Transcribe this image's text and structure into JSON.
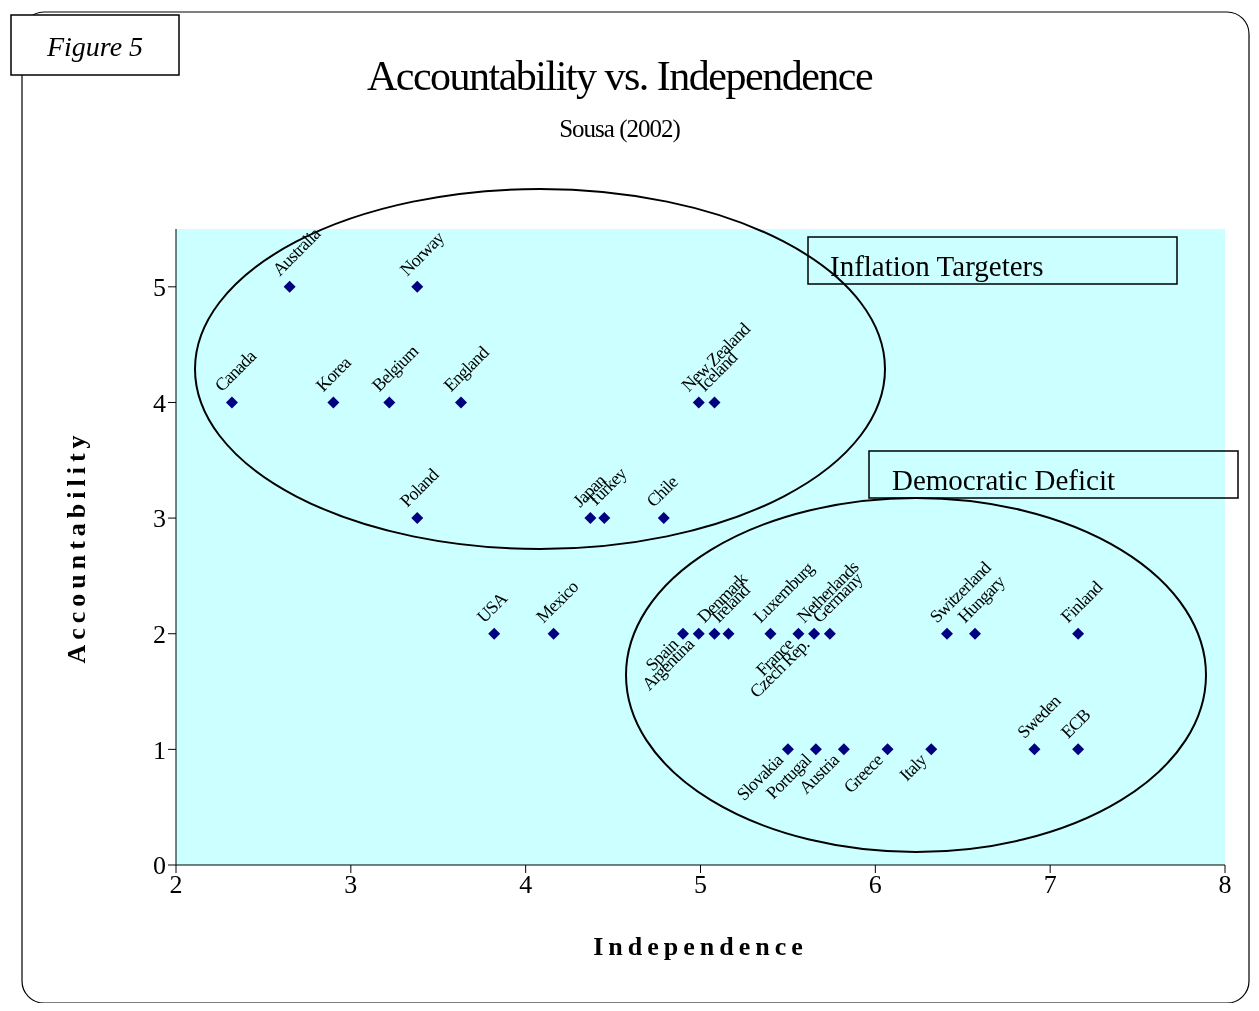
{
  "chart_data": {
    "type": "scatter",
    "title": "Accountability vs. Independence",
    "subtitle": "Sousa (2002)",
    "xlabel": "Independence",
    "ylabel": "Accountability",
    "x": [
      2.65,
      3.38,
      2.32,
      2.9,
      3.22,
      3.63,
      4.99,
      5.08,
      3.38,
      4.37,
      4.45,
      4.79,
      3.82,
      4.16,
      4.9,
      4.99,
      5.08,
      5.16,
      5.4,
      5.56,
      5.65,
      5.74,
      6.41,
      6.57,
      7.16,
      6.91,
      7.16,
      5.5,
      5.66,
      5.82,
      6.07,
      6.32
    ],
    "series": [
      {
        "color": "#000080",
        "values": [
          5,
          5,
          4,
          4,
          4,
          4,
          4,
          4,
          3,
          3,
          3,
          3,
          2,
          2,
          2,
          2,
          2,
          2,
          2,
          2,
          2,
          2,
          2,
          2,
          2,
          1,
          1,
          1,
          1,
          1,
          1,
          1
        ]
      }
    ],
    "xlim": [
      2,
      8
    ],
    "xticks": [
      2,
      3,
      4,
      5,
      6,
      7,
      8
    ],
    "ylim": [
      0,
      5.5
    ],
    "yticks": [
      0,
      1,
      2,
      3,
      4,
      5
    ],
    "marker": "diamond",
    "legend": false,
    "annotations": [
      "Figure 5",
      "Inflation Targeters",
      "Democratic Deficit",
      {
        "text": "Australia",
        "x": 2.65,
        "y": 5
      },
      {
        "text": "Norway",
        "x": 3.38,
        "y": 5
      },
      {
        "text": "Canada",
        "x": 2.32,
        "y": 4
      },
      {
        "text": "Korea",
        "x": 2.9,
        "y": 4
      },
      {
        "text": "Belgium",
        "x": 3.22,
        "y": 4
      },
      {
        "text": "England",
        "x": 3.63,
        "y": 4
      },
      {
        "text": "New Zealand",
        "x": 4.99,
        "y": 4
      },
      {
        "text": "Iceland",
        "x": 5.08,
        "y": 4
      },
      {
        "text": "Poland",
        "x": 3.38,
        "y": 3
      },
      {
        "text": "Japan",
        "x": 4.37,
        "y": 3
      },
      {
        "text": "Turkey",
        "x": 4.45,
        "y": 3
      },
      {
        "text": "Chile",
        "x": 4.79,
        "y": 3
      },
      {
        "text": "USA",
        "x": 3.82,
        "y": 2
      },
      {
        "text": "Mexico",
        "x": 4.16,
        "y": 2
      },
      {
        "text": "Spain",
        "x": 4.9,
        "y": 2
      },
      {
        "text": "Argentina",
        "x": 4.99,
        "y": 2
      },
      {
        "text": "Denmark",
        "x": 5.08,
        "y": 2
      },
      {
        "text": "Ireland",
        "x": 5.16,
        "y": 2
      },
      {
        "text": "Luxemburg",
        "x": 5.4,
        "y": 2
      },
      {
        "text": "France",
        "x": 5.56,
        "y": 2
      },
      {
        "text": "Netherlands",
        "x": 5.65,
        "y": 2
      },
      {
        "text": "Czech Rep.",
        "x": 5.65,
        "y": 2
      },
      {
        "text": "Germany",
        "x": 5.74,
        "y": 2
      },
      {
        "text": "Switzerland",
        "x": 6.41,
        "y": 2
      },
      {
        "text": "Hungary",
        "x": 6.57,
        "y": 2
      },
      {
        "text": "Finland",
        "x": 7.16,
        "y": 2
      },
      {
        "text": "Sweden",
        "x": 6.91,
        "y": 1
      },
      {
        "text": "ECB",
        "x": 7.16,
        "y": 1
      },
      {
        "text": "Slovakia",
        "x": 5.5,
        "y": 1
      },
      {
        "text": "Portugal",
        "x": 5.66,
        "y": 1
      },
      {
        "text": "Austria",
        "x": 5.82,
        "y": 1
      },
      {
        "text": "Greece",
        "x": 6.07,
        "y": 1
      },
      {
        "text": "Italy",
        "x": 6.32,
        "y": 1
      }
    ]
  }
}
